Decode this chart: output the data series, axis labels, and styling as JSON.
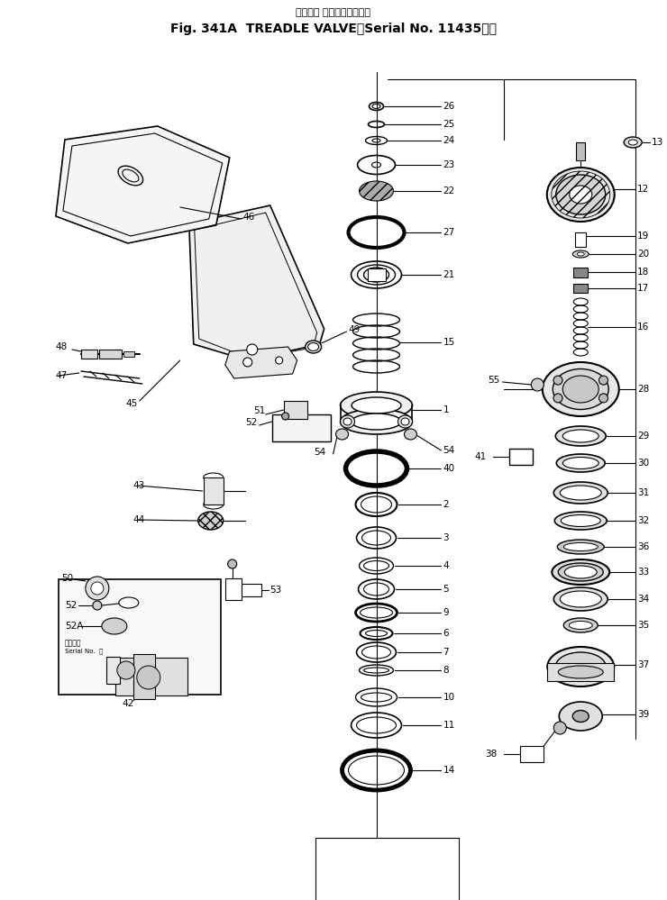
{
  "title1": "トレドル バルブ（適用号機",
  "title2": "Fig. 341A  TREADLE VALVE（Serial No. 11435～）",
  "bg": "#ffffff",
  "lc": "#000000",
  "fw": 7.4,
  "fh": 9.99,
  "dpi": 100
}
